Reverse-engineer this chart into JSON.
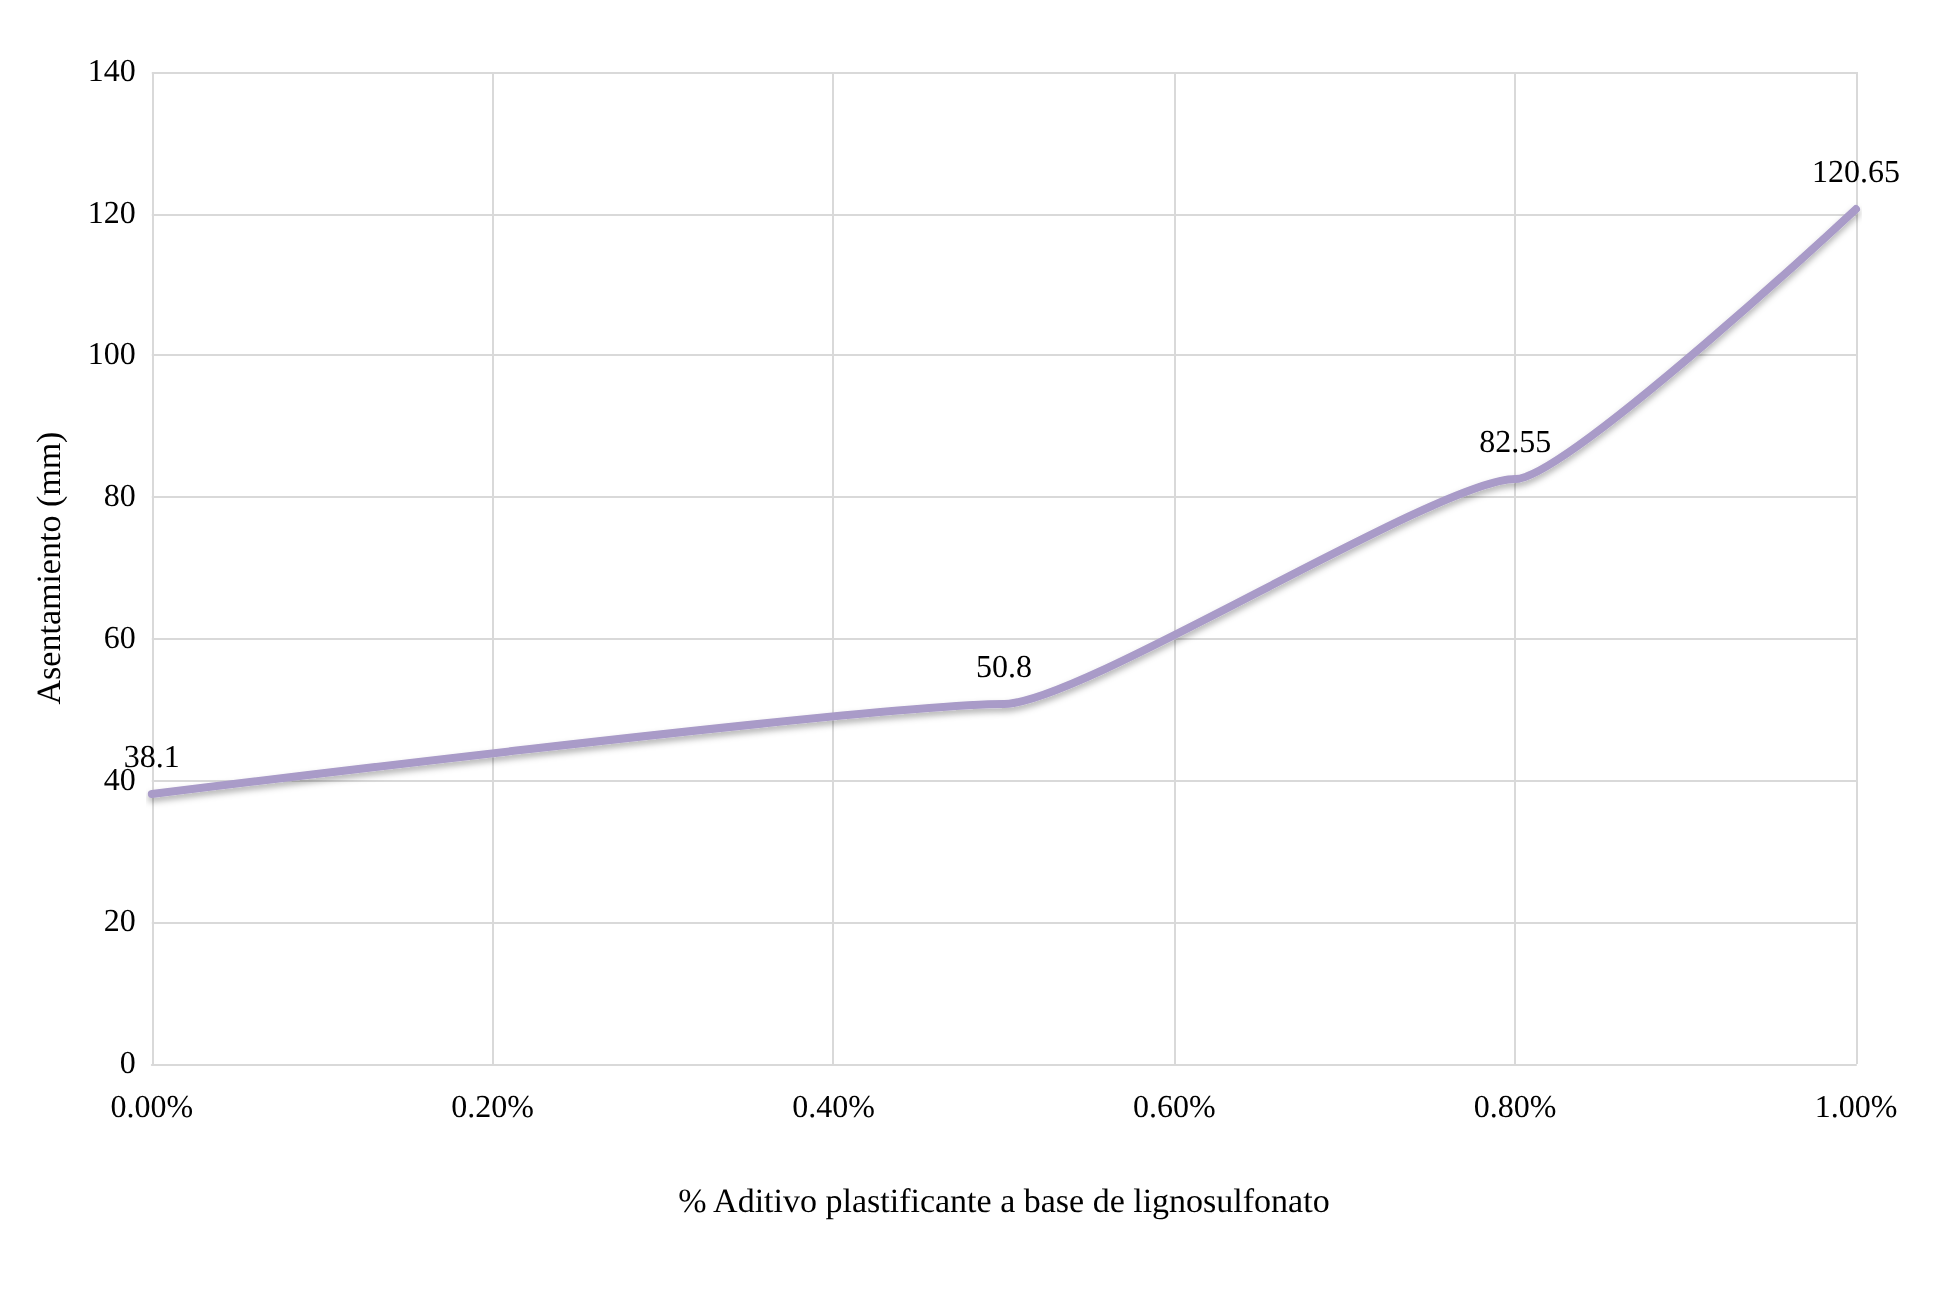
{
  "chart_data": {
    "type": "line",
    "xlabel": "% Aditivo plastificante a base de lignosulfonato",
    "ylabel": "Asentamiento (mm)",
    "x": [
      0,
      0.5,
      0.8,
      1.0
    ],
    "series": [
      {
        "color": "#a99bc8",
        "values": [
          38.1,
          50.8,
          82.55,
          120.65
        ]
      }
    ],
    "xlim": [
      0,
      1.0
    ],
    "xticks": [
      {
        "value": 0,
        "label": "0.00%"
      },
      {
        "value": 0.2,
        "label": "0.20%"
      },
      {
        "value": 0.4,
        "label": "0.40%"
      },
      {
        "value": 0.6,
        "label": "0.60%"
      },
      {
        "value": 0.8,
        "label": "0.80%"
      },
      {
        "value": 1.0,
        "label": "1.00%"
      }
    ],
    "ylim": [
      0,
      140
    ],
    "yticks": [
      0,
      20,
      40,
      60,
      80,
      100,
      120,
      140
    ],
    "grid": true,
    "data_labels": true,
    "marker": "none",
    "line_style": "solid"
  }
}
